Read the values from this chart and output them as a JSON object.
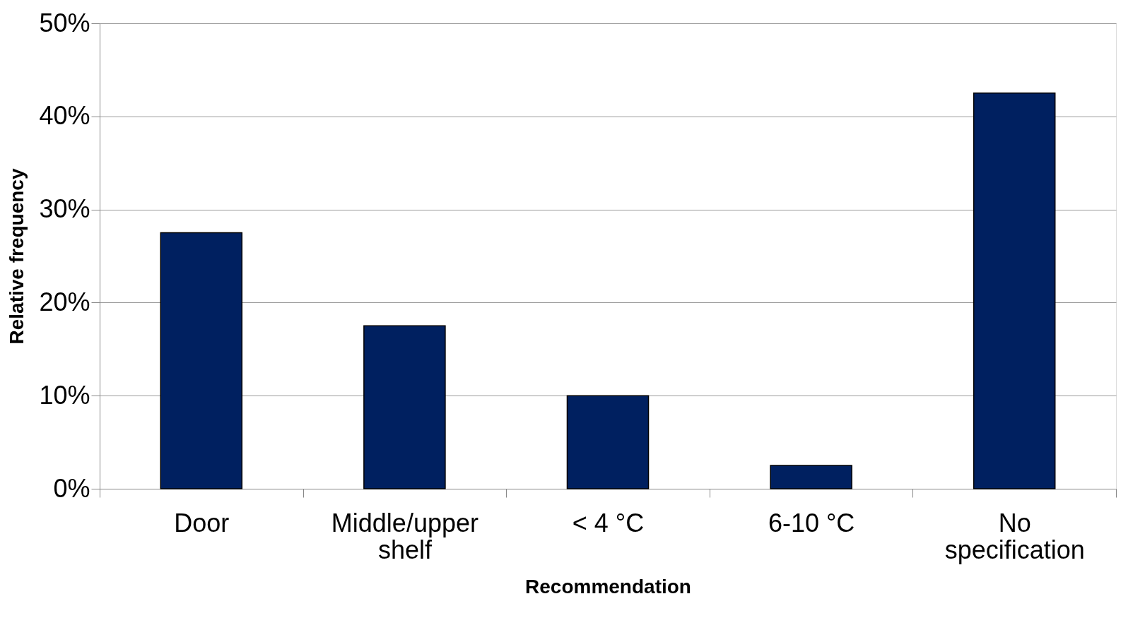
{
  "chart_data": {
    "type": "bar",
    "xlabel": "Recommendation",
    "ylabel": "Relative frequency",
    "categories": [
      "Door",
      "Middle/upper shelf",
      "< 4 °C",
      "6-10 °C",
      "No specification"
    ],
    "values": [
      27.5,
      17.5,
      10,
      2.5,
      42.5
    ],
    "color": "#002060",
    "ylim": [
      0,
      50
    ],
    "yticks": [
      {
        "value": 0,
        "label": "0%"
      },
      {
        "value": 10,
        "label": "10%"
      },
      {
        "value": 20,
        "label": "20%"
      },
      {
        "value": 30,
        "label": "30%"
      },
      {
        "value": 40,
        "label": "40%"
      },
      {
        "value": 50,
        "label": "50%"
      }
    ],
    "grid": "y"
  }
}
